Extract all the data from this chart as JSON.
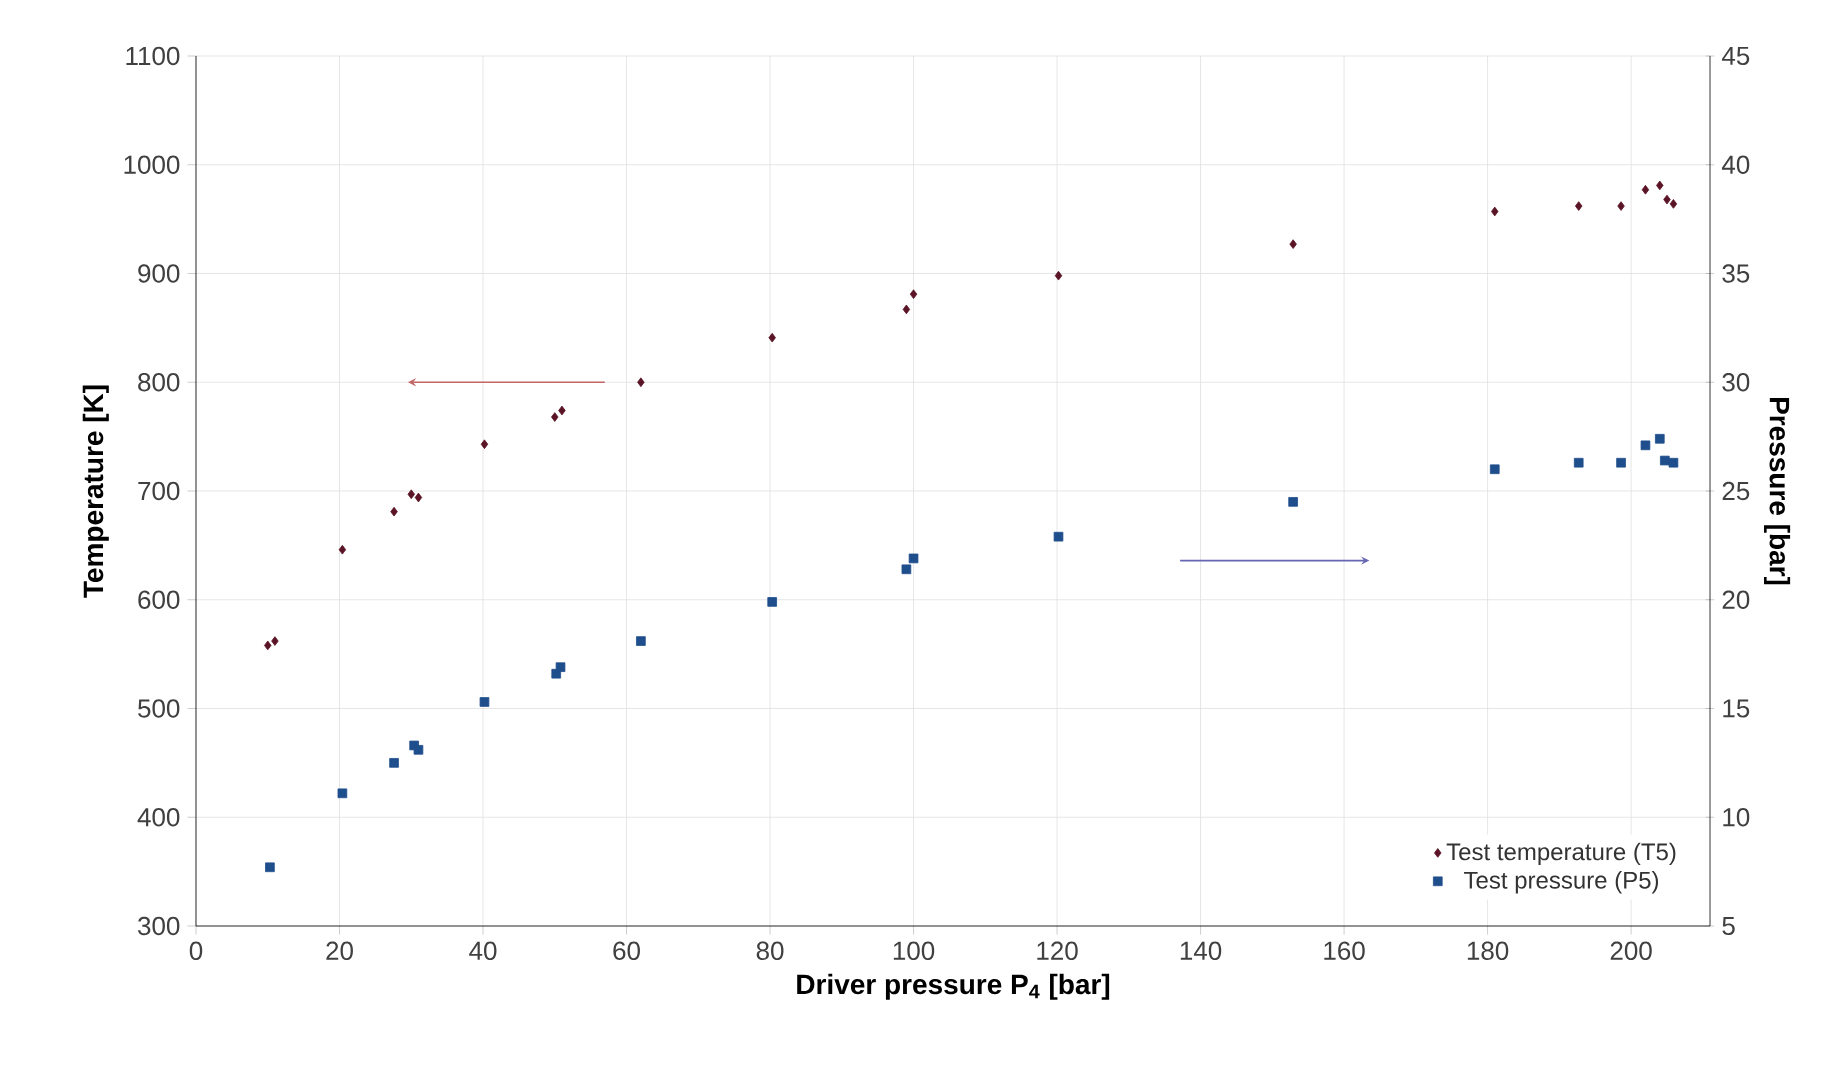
{
  "chart_data": {
    "type": "scatter",
    "xlabel": "Driver pressure P$_{4}$ [bar]",
    "ylabel": "Temperature [K]",
    "y2label": "Pressure [bar]",
    "xlim": [
      0,
      211
    ],
    "xticks": [
      0,
      20,
      40,
      60,
      80,
      100,
      120,
      140,
      160,
      180,
      200
    ],
    "ylim": [
      300,
      1100
    ],
    "yticks": [
      300,
      400,
      500,
      600,
      700,
      800,
      900,
      1000,
      1100
    ],
    "y2lim": [
      5,
      45
    ],
    "y2ticks": [
      5,
      10,
      15,
      20,
      25,
      30,
      35,
      40,
      45
    ],
    "grid": true,
    "legend": "bottom right",
    "series": [
      {
        "name": "Test temperature (T5)",
        "color": "#5a1426",
        "marker": "diamond",
        "x": [
          10,
          11,
          20.4,
          27.6,
          30,
          31,
          40.2,
          50,
          51,
          62,
          80.3,
          99,
          100,
          120.2,
          152.9,
          181,
          192.7,
          198.6,
          202,
          204,
          205,
          205.9
        ],
        "values": [
          558,
          562,
          646,
          681,
          697,
          694,
          743,
          768,
          774,
          800,
          841,
          867,
          881,
          898,
          927,
          957,
          962,
          962,
          977,
          981,
          968,
          964
        ]
      },
      {
        "name": "Test pressure (P5)",
        "color": "#1f4e8c",
        "marker": "square",
        "axis": "y2",
        "x": [
          10.3,
          20.4,
          27.6,
          30.4,
          31,
          40.2,
          50.2,
          50.8,
          62,
          80.3,
          99,
          100,
          120.2,
          152.9,
          181,
          192.7,
          198.6,
          202,
          204,
          204.7,
          205.9
        ],
        "values": [
          7.7,
          11.1,
          12.5,
          13.3,
          13.1,
          15.3,
          16.6,
          16.9,
          18.1,
          19.9,
          21.4,
          21.9,
          22.9,
          24.5,
          26.0,
          26.3,
          26.3,
          27.1,
          27.4,
          26.4,
          26.3
        ]
      }
    ]
  }
}
